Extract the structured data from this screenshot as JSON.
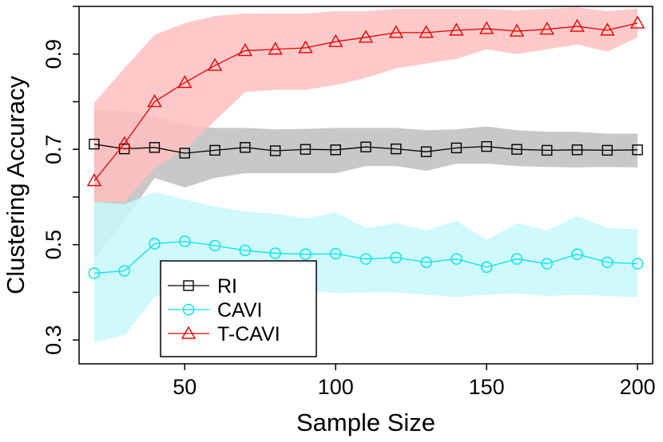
{
  "chart_data": {
    "type": "line",
    "title": "",
    "xlabel": "Sample Size",
    "ylabel": "Clustering Accuracy",
    "xlim": [
      15,
      205
    ],
    "ylim": [
      0.25,
      1.0
    ],
    "xticks": [
      50,
      100,
      150,
      200
    ],
    "xtick_labels": [
      "50",
      "100",
      "150",
      "200"
    ],
    "yticks": [
      0.3,
      0.5,
      0.7,
      0.9
    ],
    "ytick_labels": [
      "0.3",
      "0.5",
      "0.7",
      "0.9"
    ],
    "x": [
      20,
      30,
      40,
      50,
      60,
      70,
      80,
      90,
      100,
      110,
      120,
      130,
      140,
      150,
      160,
      170,
      180,
      190,
      200
    ],
    "legend_position": "bottom-left",
    "series": [
      {
        "name": "RI",
        "color": "#000000",
        "band_color": "#bebebe",
        "marker": "square",
        "values": [
          0.711,
          0.701,
          0.704,
          0.692,
          0.698,
          0.704,
          0.697,
          0.7,
          0.699,
          0.705,
          0.701,
          0.695,
          0.703,
          0.706,
          0.7,
          0.698,
          0.699,
          0.698,
          0.699
        ],
        "upper": [
          0.785,
          0.78,
          0.77,
          0.752,
          0.745,
          0.745,
          0.742,
          0.743,
          0.745,
          0.745,
          0.745,
          0.74,
          0.742,
          0.748,
          0.74,
          0.737,
          0.737,
          0.733,
          0.733
        ],
        "lower": [
          0.47,
          0.55,
          0.64,
          0.62,
          0.64,
          0.65,
          0.65,
          0.65,
          0.65,
          0.665,
          0.665,
          0.655,
          0.67,
          0.67,
          0.665,
          0.663,
          0.662,
          0.663,
          0.662
        ]
      },
      {
        "name": "CAVI",
        "color": "#00e5ee",
        "band_color": "#c8f8fc",
        "marker": "circle",
        "values": [
          0.44,
          0.445,
          0.502,
          0.507,
          0.498,
          0.488,
          0.482,
          0.48,
          0.481,
          0.47,
          0.473,
          0.463,
          0.47,
          0.453,
          0.47,
          0.46,
          0.48,
          0.463,
          0.46
        ],
        "upper": [
          0.59,
          0.585,
          0.61,
          0.595,
          0.58,
          0.57,
          0.565,
          0.555,
          0.568,
          0.535,
          0.545,
          0.53,
          0.55,
          0.51,
          0.545,
          0.53,
          0.56,
          0.535,
          0.533
        ],
        "lower": [
          0.295,
          0.31,
          0.39,
          0.41,
          0.41,
          0.41,
          0.405,
          0.405,
          0.398,
          0.4,
          0.4,
          0.395,
          0.39,
          0.395,
          0.398,
          0.392,
          0.395,
          0.392,
          0.39
        ]
      },
      {
        "name": "T-CAVI",
        "color": "#ee0000",
        "band_color": "#ffc0c0",
        "marker": "triangle",
        "values": [
          0.634,
          0.712,
          0.8,
          0.84,
          0.876,
          0.907,
          0.91,
          0.913,
          0.926,
          0.935,
          0.945,
          0.945,
          0.95,
          0.953,
          0.948,
          0.952,
          0.958,
          0.95,
          0.965
        ],
        "upper": [
          0.798,
          0.87,
          0.94,
          0.965,
          0.98,
          0.985,
          0.985,
          0.985,
          0.99,
          0.99,
          0.995,
          0.995,
          0.995,
          0.995,
          0.992,
          0.995,
          0.998,
          0.99,
          0.995
        ],
        "lower": [
          0.59,
          0.59,
          0.66,
          0.7,
          0.76,
          0.82,
          0.825,
          0.825,
          0.835,
          0.85,
          0.87,
          0.88,
          0.89,
          0.91,
          0.9,
          0.91,
          0.92,
          0.905,
          0.935
        ]
      }
    ]
  }
}
